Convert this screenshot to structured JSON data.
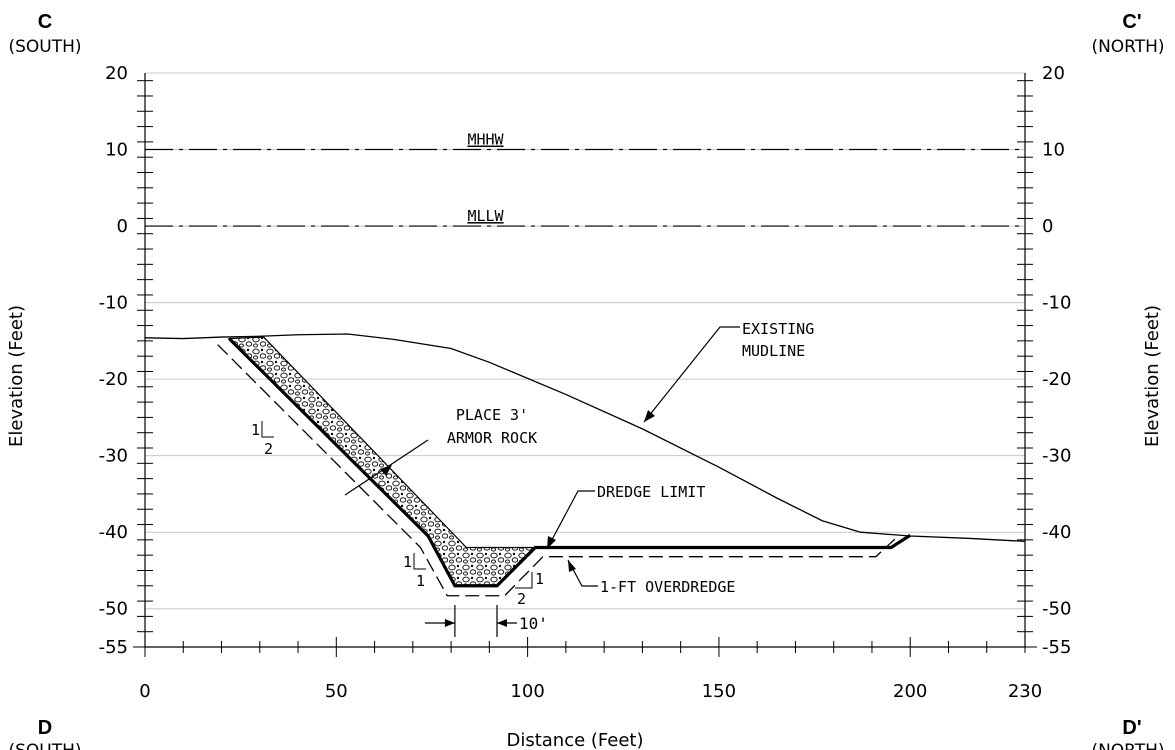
{
  "corners": {
    "top_left": {
      "letter": "C",
      "direction": "(SOUTH)"
    },
    "top_right": {
      "letter": "C'",
      "direction": "(NORTH)"
    },
    "bottom_left": {
      "letter": "D",
      "direction": "(SOUTH)"
    },
    "bottom_right": {
      "letter": "D'",
      "direction": "(NORTH)"
    }
  },
  "axes": {
    "ylabel": "Elevation (Feet)",
    "xlabel": "Distance (Feet)",
    "y_ticks": [
      "20",
      "10",
      "0",
      "-10",
      "-20",
      "-30",
      "-40",
      "-50",
      "-55"
    ],
    "x_ticks": [
      "0",
      "50",
      "100",
      "150",
      "200",
      "230"
    ]
  },
  "chart_data": {
    "type": "line",
    "xlim": [
      0,
      230
    ],
    "ylim": [
      -55,
      20
    ],
    "y_ticks": [
      20,
      10,
      0,
      -10,
      -20,
      -30,
      -40,
      -50,
      -55
    ],
    "x_ticks": [
      0,
      50,
      100,
      150,
      200,
      230
    ],
    "grid": true,
    "water_levels": [
      {
        "label": "MHHW",
        "y": 10
      },
      {
        "label": "MLLW",
        "y": 0
      }
    ],
    "series": [
      {
        "key": "mudline",
        "x": [
          0,
          10,
          20,
          30,
          40,
          53,
          65,
          80,
          90,
          110,
          130,
          150,
          165,
          177,
          187,
          200,
          215,
          230
        ],
        "y": [
          -14.6,
          -14.7,
          -14.5,
          -14.4,
          -14.2,
          -14.1,
          -14.8,
          -16,
          -17.8,
          -22,
          -26.5,
          -31.5,
          -35.5,
          -38.5,
          -40,
          -40.5,
          -40.8,
          -41.2
        ]
      },
      {
        "key": "dredge_limit",
        "x": [
          22,
          74,
          81,
          92,
          102,
          195,
          200
        ],
        "y": [
          -14.7,
          -40.5,
          -47,
          -47,
          -42,
          -42,
          -40.4
        ]
      },
      {
        "key": "overdredge",
        "x": [
          19,
          72,
          79,
          94,
          104,
          110,
          191,
          196
        ],
        "y": [
          -15.5,
          -42,
          -48.3,
          -48.3,
          -43.2,
          -43.2,
          -43.2,
          -40.9
        ]
      },
      {
        "key": "armor_upper",
        "x": [
          22,
          31,
          84,
          98
        ],
        "y": [
          -14.7,
          -14.5,
          -42,
          -42
        ]
      }
    ]
  },
  "annotations": {
    "mhhw": "MHHW",
    "mllw": "MLLW",
    "mudline_line1": "EXISTING",
    "mudline_line2": "MUDLINE",
    "armor_line1": "PLACE 3'",
    "armor_line2": "ARMOR ROCK",
    "dredge": "DREDGE LIMIT",
    "overdredge": "1-FT OVERDREDGE",
    "width": "10'",
    "slope_upper_v": "1",
    "slope_upper_h": "2",
    "slope_left_v": "1",
    "slope_left_h": "1",
    "slope_right_v": "1",
    "slope_right_h": "2"
  }
}
